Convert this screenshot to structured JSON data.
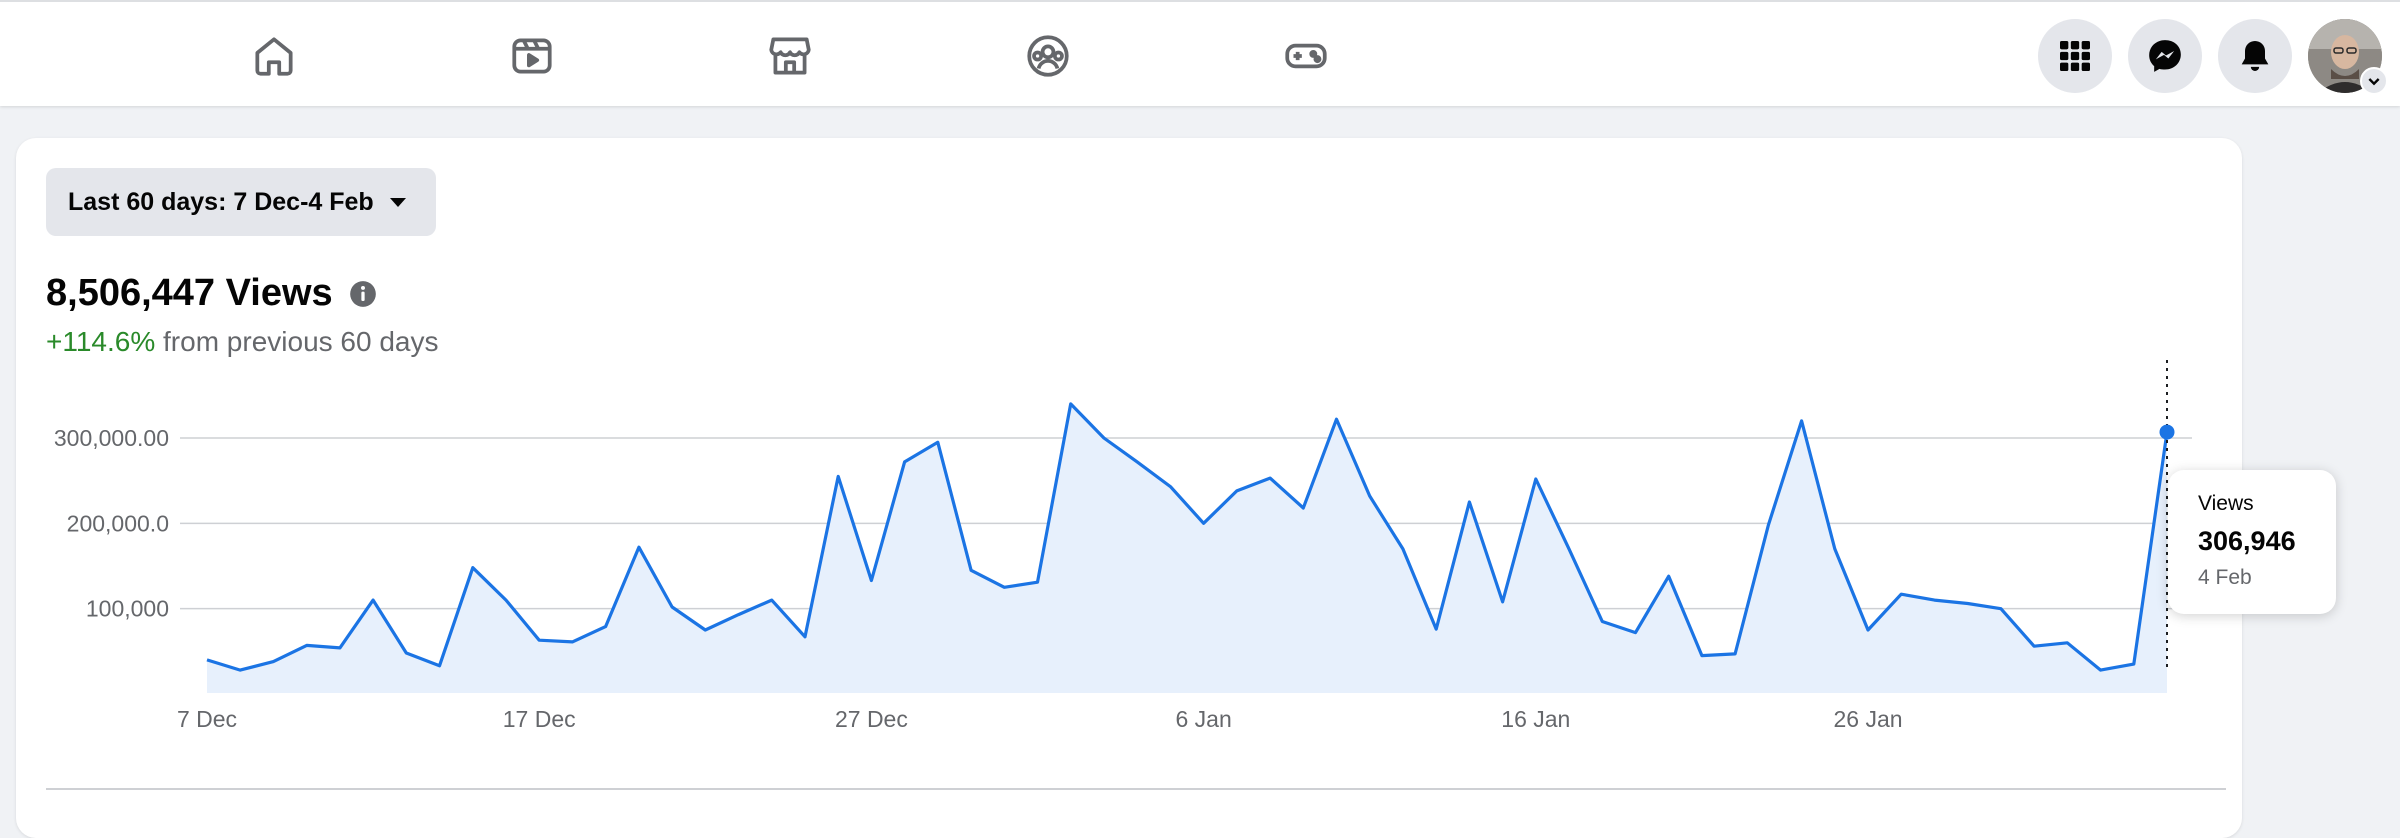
{
  "nav": {
    "tabs": [
      {
        "name": "home",
        "icon": "home-icon"
      },
      {
        "name": "video",
        "icon": "video-icon"
      },
      {
        "name": "marketplace",
        "icon": "marketplace-icon"
      },
      {
        "name": "groups",
        "icon": "groups-icon"
      },
      {
        "name": "gaming",
        "icon": "gaming-icon"
      }
    ],
    "right_icons": [
      "menu-grid-icon",
      "messenger-icon",
      "notifications-icon",
      "account-avatar"
    ]
  },
  "insights": {
    "date_range_label": "Last 60 days: 7 Dec-4 Feb",
    "total_views": "8,506,447 Views",
    "change_percent": "+114.6%",
    "change_text": " from previous 60 days"
  },
  "tooltip": {
    "label": "Views",
    "value": "306,946",
    "date": "4 Feb"
  },
  "colors": {
    "line": "#1b74e4",
    "area": "#e7f0fc",
    "positive": "#2a8a2a",
    "grid": "#ced0d4"
  },
  "chart_data": {
    "type": "area",
    "series": [
      {
        "values": [
          40000,
          28000,
          38000,
          57000,
          54000,
          110000,
          48000,
          33000,
          148000,
          110000,
          63000,
          61000,
          79000,
          172000,
          102000,
          75000,
          93000,
          110000,
          67000,
          255000,
          133000,
          272000,
          295000,
          145000,
          125000,
          131000,
          340000,
          300000,
          272000,
          243000,
          200000,
          238000,
          253000,
          218000,
          322000,
          232000,
          170000,
          76000,
          225000,
          108000,
          252000,
          170000,
          85000,
          72000,
          138000,
          45000,
          47000,
          198000,
          320000,
          170000,
          75000,
          117000,
          110000,
          106000,
          100000,
          56000,
          60000,
          28000,
          35000,
          306946
        ]
      }
    ],
    "x_tick_labels": [
      "7 Dec",
      "17 Dec",
      "27 Dec",
      "6 Jan",
      "16 Jan",
      "26 Jan"
    ],
    "y_tick_labels": [
      "100,000",
      "200,000.0",
      "300,000.00"
    ],
    "y_ticks": [
      100000,
      200000,
      300000
    ],
    "ylim": [
      0,
      340000
    ],
    "grid": true,
    "highlight_point": {
      "x": "4 Feb",
      "y": 306946
    }
  }
}
